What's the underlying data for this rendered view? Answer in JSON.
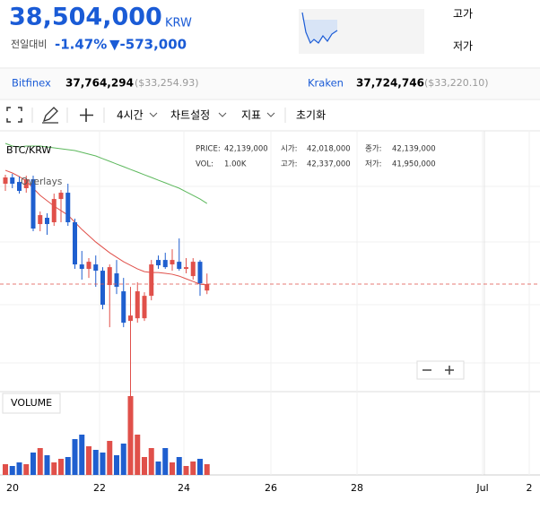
{
  "header": {
    "price": "38,504,000",
    "currency": "KRW",
    "change_label": "전일대비",
    "change_pct": "-1.47%",
    "change_abs": "▼-573,000",
    "high_label": "고가",
    "low_label": "저가"
  },
  "exchanges": [
    {
      "name": "Bitfinex",
      "krw": "37,764,294",
      "usd": "($33,254.93)"
    },
    {
      "name": "Kraken",
      "krw": "37,724,746",
      "usd": "($33,220.10)"
    }
  ],
  "toolbar": {
    "interval": "4시간",
    "settings": "차트설정",
    "indicators": "지표",
    "reset": "초기화"
  },
  "info": {
    "pair": "BTC/KRW",
    "overlays": "Overlays",
    "price_label": "PRICE:",
    "price": "42,139,000",
    "vol_label": "VOL:",
    "vol": "1.00K",
    "open_label": "시가:",
    "open": "42,018,000",
    "high_label": "고가:",
    "high": "42,337,000",
    "close_label": "종가:",
    "close": "42,139,000",
    "low_label": "저가:",
    "low": "41,950,000",
    "volume_title": "VOLUME"
  },
  "chart_data": {
    "type": "candlestick",
    "up_color": "#e0504a",
    "down_color": "#1f5fcf",
    "ma_colors": [
      "#5cb85c",
      "#e0504a"
    ],
    "ylim": [
      39900000,
      44950000
    ],
    "vlim": [
      0,
      8000
    ],
    "x_labels": [
      "20",
      "22",
      "24",
      "26",
      "28",
      "Jul",
      "2"
    ],
    "candles": [
      {
        "open": 44024000,
        "high": 44192000,
        "low": 43889000,
        "close": 44142000
      },
      {
        "open": 44142000,
        "high": 44209000,
        "low": 43940000,
        "close": 44024000
      },
      {
        "open": 44057000,
        "high": 44158000,
        "low": 43838000,
        "close": 43889000
      },
      {
        "open": 43940000,
        "high": 44175000,
        "low": 43855000,
        "close": 44108000
      },
      {
        "open": 44108000,
        "high": 44175000,
        "low": 43131000,
        "close": 43182000
      },
      {
        "open": 43266000,
        "high": 43502000,
        "low": 43131000,
        "close": 43434000
      },
      {
        "open": 43384000,
        "high": 43468000,
        "low": 43064000,
        "close": 43266000
      },
      {
        "open": 43300000,
        "high": 43838000,
        "low": 43232000,
        "close": 43737000
      },
      {
        "open": 43737000,
        "high": 43906000,
        "low": 43300000,
        "close": 43855000
      },
      {
        "open": 43855000,
        "high": 44024000,
        "low": 43232000,
        "close": 43300000
      },
      {
        "open": 43300000,
        "high": 43367000,
        "low": 42424000,
        "close": 42508000
      },
      {
        "open": 42508000,
        "high": 42761000,
        "low": 42222000,
        "close": 42424000
      },
      {
        "open": 42424000,
        "high": 42626000,
        "low": 42255000,
        "close": 42558000
      },
      {
        "open": 42508000,
        "high": 42676000,
        "low": 42087000,
        "close": 42390000
      },
      {
        "open": 42390000,
        "high": 42457000,
        "low": 41666000,
        "close": 41750000
      },
      {
        "open": 42121000,
        "high": 42508000,
        "low": 41329000,
        "close": 42457000
      },
      {
        "open": 42340000,
        "high": 42592000,
        "low": 41952000,
        "close": 42087000
      },
      {
        "open": 42003000,
        "high": 42255000,
        "low": 41329000,
        "close": 41413000
      },
      {
        "open": 41447000,
        "high": 42087000,
        "low": 39234000,
        "close": 41548000
      },
      {
        "open": 41497000,
        "high": 42171000,
        "low": 41413000,
        "close": 42003000
      },
      {
        "open": 41497000,
        "high": 41986000,
        "low": 41447000,
        "close": 41918000
      },
      {
        "open": 41918000,
        "high": 42592000,
        "low": 41834000,
        "close": 42508000
      },
      {
        "open": 42592000,
        "high": 42676000,
        "low": 42424000,
        "close": 42491000
      },
      {
        "open": 42592000,
        "high": 42727000,
        "low": 42424000,
        "close": 42457000
      },
      {
        "open": 42508000,
        "high": 42794000,
        "low": 42390000,
        "close": 42592000
      },
      {
        "open": 42558000,
        "high": 42996000,
        "low": 42390000,
        "close": 42424000
      },
      {
        "open": 42424000,
        "high": 42626000,
        "low": 42340000,
        "close": 42457000
      },
      {
        "open": 42289000,
        "high": 42626000,
        "low": 42222000,
        "close": 42558000
      },
      {
        "open": 42558000,
        "high": 42592000,
        "low": 41918000,
        "close": 42154000
      },
      {
        "open": 42018000,
        "high": 42337000,
        "low": 41950000,
        "close": 42139000
      }
    ],
    "volume": [
      1000,
      833,
      1167,
      1000,
      2083,
      2500,
      1833,
      1167,
      1500,
      1667,
      3333,
      3750,
      2667,
      2333,
      2083,
      3167,
      1833,
      2917,
      7333,
      3750,
      1667,
      2500,
      1250,
      2500,
      1167,
      1667,
      833,
      1250,
      1500,
      1000
    ],
    "ma": [
      [
        44782000,
        44731000,
        44714000,
        44731000,
        44731000,
        44731000,
        44714000,
        44697000,
        44681000,
        44664000,
        44647000,
        44613000,
        44580000,
        44546000,
        44495000,
        44445000,
        44394000,
        44344000,
        44293000,
        44243000,
        44192000,
        44142000,
        44091000,
        44041000,
        43990000,
        43940000,
        43872000,
        43805000,
        43737000,
        43653000
      ],
      [
        44276000,
        44226000,
        44158000,
        44074000,
        43940000,
        43805000,
        43704000,
        43603000,
        43518000,
        43434000,
        43300000,
        43165000,
        43047000,
        42929000,
        42828000,
        42727000,
        42643000,
        42558000,
        42491000,
        42424000,
        42373000,
        42356000,
        42356000,
        42340000,
        42323000,
        42289000,
        42238000,
        42188000,
        42137000,
        42121000
      ]
    ]
  }
}
